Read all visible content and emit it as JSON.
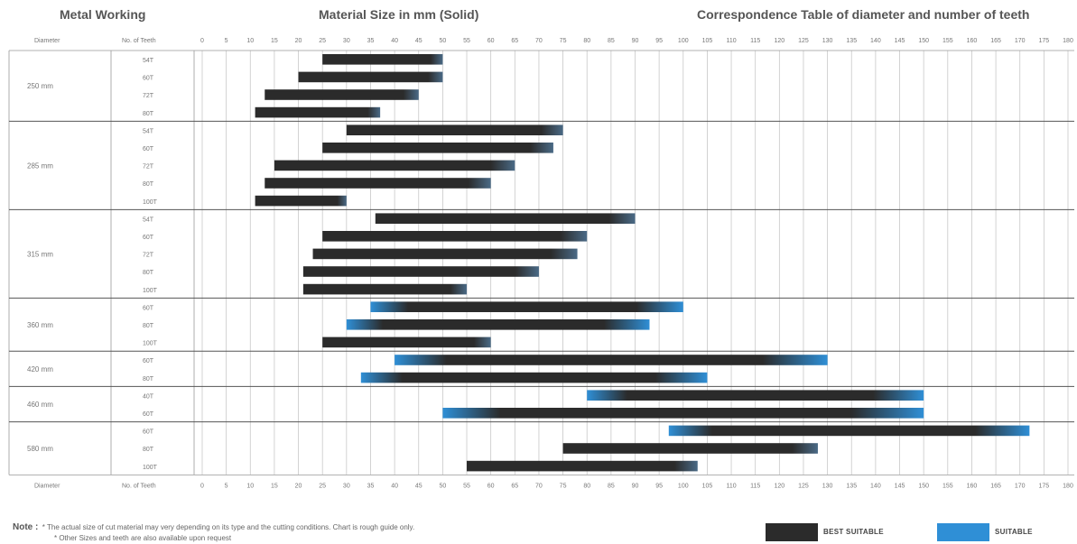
{
  "headers": {
    "left": "Metal Working",
    "center": "Material Size in mm (Solid)",
    "right": "Correspondence Table of diameter and number of teeth"
  },
  "columns": {
    "diameter": "Diameter",
    "teeth": "No. of Teeth"
  },
  "legend": {
    "best": {
      "label": "BEST SUITABLE",
      "color": "#2b2b2b"
    },
    "suitable": {
      "label": "SUITABLE",
      "color": "#2f8fd6"
    }
  },
  "note": {
    "prefix": "Note :",
    "line1": "* The actual size of cut material may very depending on its type and the cutting conditions. Chart is rough guide only.",
    "line2": "* Other Sizes and teeth are also available upon request"
  },
  "chart_data": {
    "type": "bar",
    "orientation": "horizontal-range",
    "title": "Material Size in mm (Solid)",
    "xlabel": "Material Size in mm (Solid)",
    "x_ticks": [
      0,
      5,
      10,
      15,
      20,
      25,
      30,
      35,
      40,
      45,
      50,
      55,
      60,
      65,
      70,
      75,
      80,
      85,
      90,
      95,
      100,
      105,
      110,
      115,
      120,
      125,
      130,
      135,
      140,
      145,
      150,
      155,
      160,
      165,
      170,
      175,
      180
    ],
    "xlim": [
      0,
      180
    ],
    "grid": true,
    "legend_position": "bottom-right",
    "groups": [
      {
        "diameter": "250 mm",
        "rows": [
          {
            "teeth": "54T",
            "min": 25,
            "max": 50
          },
          {
            "teeth": "60T",
            "min": 20,
            "max": 50
          },
          {
            "teeth": "72T",
            "min": 13,
            "max": 45
          },
          {
            "teeth": "80T",
            "min": 11,
            "max": 37
          }
        ]
      },
      {
        "diameter": "285 mm",
        "rows": [
          {
            "teeth": "54T",
            "min": 30,
            "max": 75
          },
          {
            "teeth": "60T",
            "min": 25,
            "max": 73
          },
          {
            "teeth": "72T",
            "min": 15,
            "max": 65
          },
          {
            "teeth": "80T",
            "min": 13,
            "max": 60
          },
          {
            "teeth": "100T",
            "min": 11,
            "max": 30
          }
        ]
      },
      {
        "diameter": "315 mm",
        "rows": [
          {
            "teeth": "54T",
            "min": 36,
            "max": 90
          },
          {
            "teeth": "60T",
            "min": 25,
            "max": 80
          },
          {
            "teeth": "72T",
            "min": 23,
            "max": 78
          },
          {
            "teeth": "80T",
            "min": 21,
            "max": 70
          },
          {
            "teeth": "100T",
            "min": 21,
            "max": 55
          }
        ]
      },
      {
        "diameter": "360 mm",
        "rows": [
          {
            "teeth": "60T",
            "min": 35,
            "max": 100
          },
          {
            "teeth": "80T",
            "min": 30,
            "max": 93
          },
          {
            "teeth": "100T",
            "min": 25,
            "max": 60
          }
        ]
      },
      {
        "diameter": "420 mm",
        "rows": [
          {
            "teeth": "60T",
            "min": 40,
            "max": 130
          },
          {
            "teeth": "80T",
            "min": 33,
            "max": 105
          }
        ]
      },
      {
        "diameter": "460 mm",
        "rows": [
          {
            "teeth": "40T",
            "min": 80,
            "max": 150
          },
          {
            "teeth": "60T",
            "min": 50,
            "max": 150
          }
        ]
      },
      {
        "diameter": "580 mm",
        "rows": [
          {
            "teeth": "60T",
            "min": 97,
            "max": 172
          },
          {
            "teeth": "80T",
            "min": 75,
            "max": 128
          },
          {
            "teeth": "100T",
            "min": 55,
            "max": 103
          }
        ]
      }
    ]
  }
}
